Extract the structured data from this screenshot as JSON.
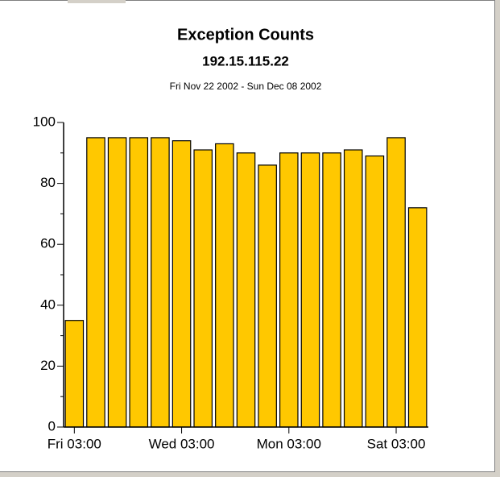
{
  "chart_data": {
    "type": "bar",
    "title": "Exception Counts",
    "subtitle": "192.15.115.22",
    "date_range": "Fri Nov 22 2002 - Sun Dec 08 2002",
    "categories": [
      "Fri 03:00",
      null,
      null,
      null,
      null,
      "Wed 03:00",
      null,
      null,
      null,
      null,
      "Mon 03:00",
      null,
      null,
      null,
      null,
      "Sat 03:00",
      null
    ],
    "values": [
      35,
      95,
      95,
      95,
      95,
      94,
      91,
      93,
      90,
      86,
      90,
      90,
      90,
      91,
      89,
      95,
      72
    ],
    "color": "#ffc800",
    "ylim": [
      0,
      100
    ],
    "yticks": [
      0,
      20,
      40,
      60,
      80,
      100
    ],
    "grid": false
  }
}
